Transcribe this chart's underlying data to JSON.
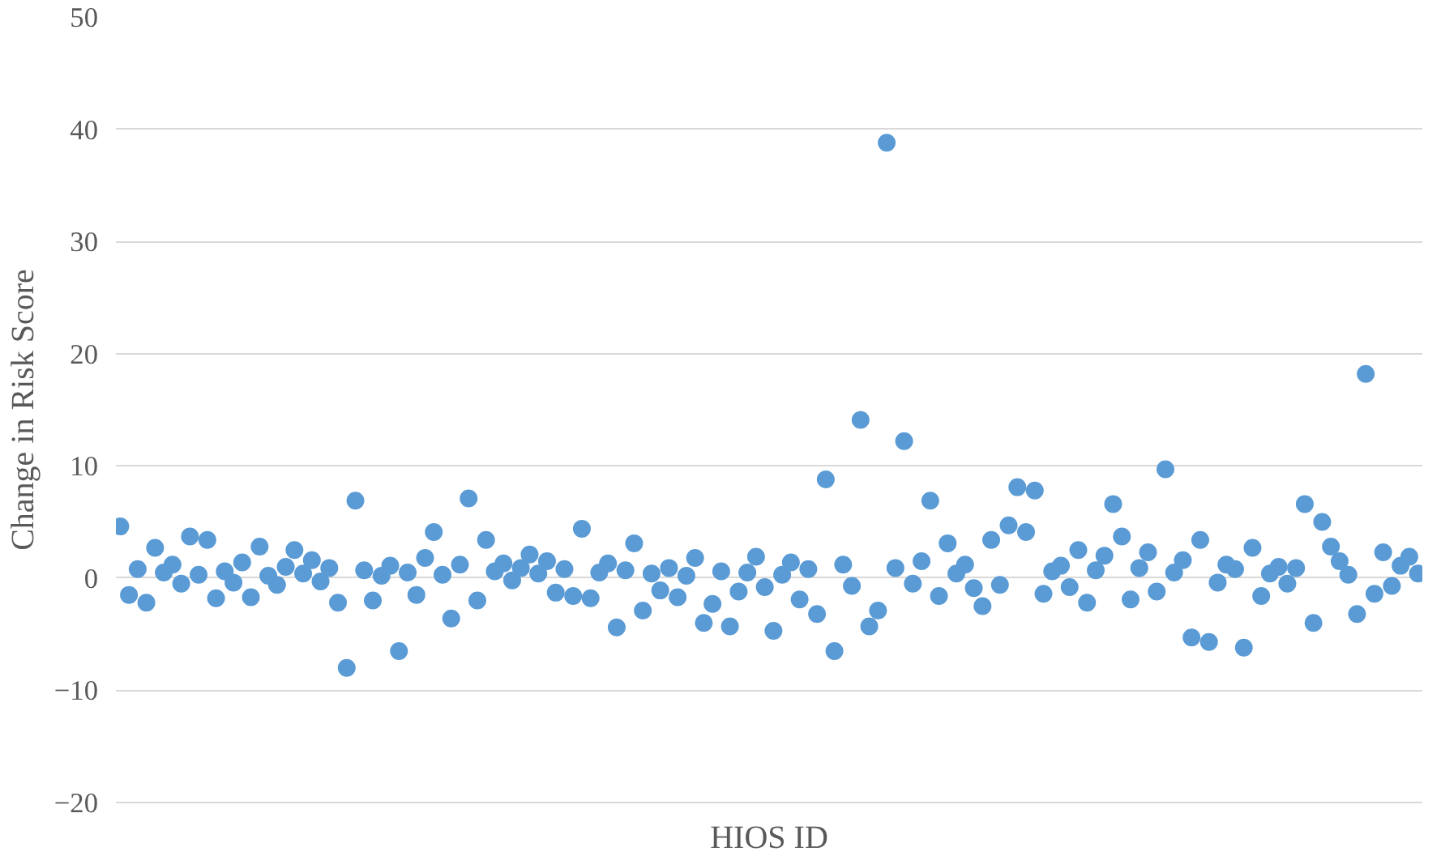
{
  "chart_data": {
    "type": "scatter",
    "xlabel": "HIOS ID",
    "ylabel": "Change in Risk Score",
    "categories": [
      null,
      null,
      null,
      null,
      null,
      null,
      null,
      null,
      null,
      null,
      null,
      null,
      null,
      null,
      null,
      null,
      null,
      null,
      null,
      null,
      null,
      null,
      null,
      null,
      null,
      null,
      null,
      null,
      null,
      null,
      null,
      null,
      null,
      null,
      null,
      null,
      null,
      null,
      null,
      null,
      null,
      null,
      null,
      null,
      null,
      null,
      null,
      null,
      null,
      null,
      null,
      null,
      null,
      null,
      null,
      null,
      null,
      null,
      null,
      null,
      null,
      null,
      null,
      null,
      null,
      null,
      null,
      null,
      null,
      null,
      null,
      null,
      null,
      null,
      null,
      null,
      null,
      null,
      null,
      null,
      null,
      null,
      null,
      null,
      null,
      null,
      null,
      null,
      null,
      null,
      null,
      null,
      null,
      null,
      null,
      null,
      null,
      null,
      null,
      null,
      null,
      null,
      null,
      null,
      null,
      null,
      null,
      null,
      null,
      null,
      null,
      null,
      null,
      null,
      null,
      null,
      null,
      null,
      null,
      null,
      null,
      null,
      null,
      null,
      null,
      null,
      null,
      null,
      null,
      null,
      null,
      null,
      null,
      null,
      null,
      null,
      null,
      null,
      null,
      null,
      null,
      null,
      null,
      null,
      null,
      null,
      null,
      null,
      null,
      null
    ],
    "values": [
      4.6,
      -1.5,
      0.8,
      -2.2,
      2.7,
      0.5,
      1.2,
      -0.5,
      3.7,
      0.3,
      3.4,
      -1.8,
      0.6,
      -0.4,
      1.4,
      -1.7,
      2.8,
      0.2,
      -0.6,
      1.0,
      2.5,
      0.4,
      1.6,
      -0.3,
      0.9,
      -2.2,
      -8.0,
      6.9,
      0.7,
      -2.0,
      0.2,
      1.1,
      -6.5,
      0.5,
      -1.5,
      1.8,
      4.1,
      0.3,
      -3.6,
      1.2,
      7.1,
      -2.0,
      3.4,
      0.6,
      1.3,
      -0.2,
      0.9,
      2.1,
      0.4,
      1.5,
      -1.3,
      0.8,
      -1.6,
      4.4,
      -1.8,
      0.5,
      1.3,
      -4.4,
      0.7,
      3.1,
      -2.9,
      0.4,
      -1.1,
      0.9,
      -1.7,
      0.2,
      1.8,
      -4.0,
      -2.3,
      0.6,
      -4.3,
      -1.2,
      0.5,
      1.9,
      -0.8,
      -4.7,
      0.3,
      1.4,
      -1.9,
      0.8,
      -3.2,
      8.8,
      -6.5,
      1.2,
      -0.7,
      14.1,
      -4.3,
      -2.9,
      38.8,
      0.9,
      12.2,
      -0.5,
      1.5,
      6.9,
      -1.6,
      3.1,
      0.4,
      1.2,
      -0.9,
      -2.5,
      3.4,
      -0.6,
      4.7,
      8.1,
      4.1,
      7.8,
      -1.4,
      0.6,
      1.1,
      -0.8,
      2.5,
      -2.2,
      0.7,
      2.0,
      6.6,
      3.7,
      -1.9,
      0.9,
      2.3,
      -1.2,
      9.7,
      0.5,
      1.6,
      -5.3,
      3.4,
      -5.7,
      -0.4,
      1.2,
      0.8,
      -6.2,
      2.7,
      -1.6,
      0.4,
      1.0,
      -0.5,
      0.9,
      6.6,
      -4.0,
      5.0,
      2.8,
      1.5,
      0.3,
      -3.2,
      18.2,
      -1.4,
      2.3,
      -0.7,
      1.1,
      1.9,
      0.4
    ],
    "color": "#5b9bd5",
    "marker": "circle",
    "ylim": [
      -20,
      50
    ],
    "yticks": [
      -20,
      -10,
      0,
      10,
      20,
      30,
      40,
      50
    ],
    "grid": "y",
    "tick_labels": "y"
  }
}
